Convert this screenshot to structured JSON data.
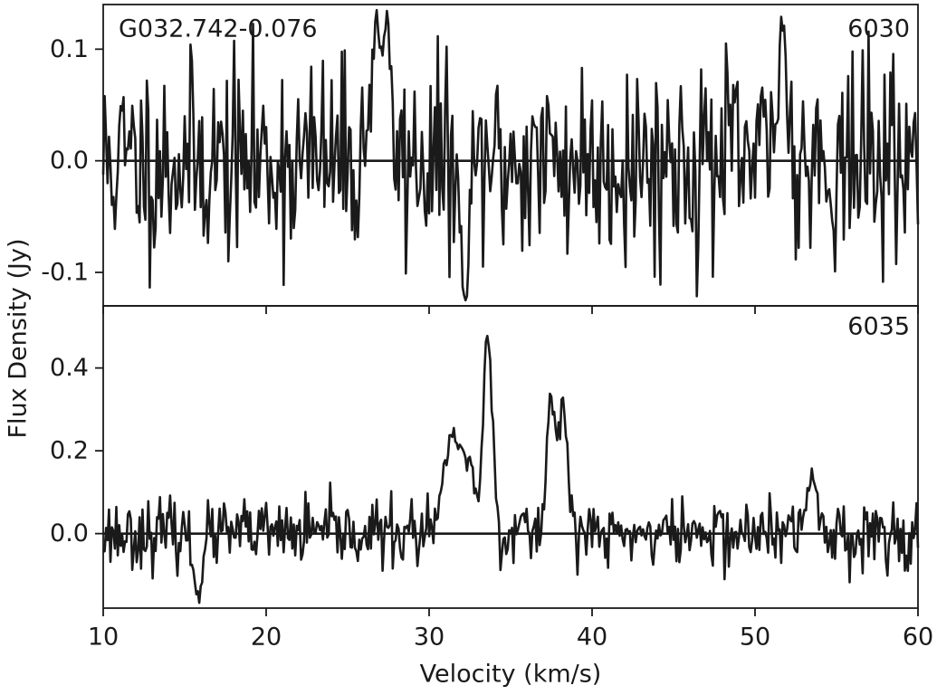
{
  "figure": {
    "source_label": "G032.742-0.076",
    "xlabel": "Velocity (km/s)",
    "ylabel": "Flux Density (Jy)"
  },
  "chart_data": [
    {
      "type": "line",
      "panel": "top",
      "label": "6030",
      "xlim": [
        10,
        60
      ],
      "ylim": [
        -0.13,
        0.14
      ],
      "xticks": [
        10,
        20,
        30,
        40,
        50,
        60
      ],
      "yticks": [
        0.1,
        0.0,
        -0.1
      ],
      "ytick_labels": [
        "0.1",
        "0.0",
        "-0.1"
      ],
      "baseline": 0.0,
      "noise_rms": 0.045,
      "features": [
        {
          "x": 26.7,
          "y": 0.12
        },
        {
          "x": 27.3,
          "y": 0.12
        },
        {
          "x": 32.2,
          "y": -0.12
        },
        {
          "x": 51.7,
          "y": 0.125
        }
      ],
      "grid": false
    },
    {
      "type": "line",
      "panel": "bottom",
      "label": "6035",
      "xlim": [
        10,
        60
      ],
      "ylim": [
        -0.18,
        0.55
      ],
      "xticks": [
        10,
        20,
        30,
        40,
        50,
        60
      ],
      "xtick_labels": [
        "10",
        "20",
        "30",
        "40",
        "50",
        "60"
      ],
      "yticks": [
        0.4,
        0.2,
        0.0
      ],
      "ytick_labels": [
        "0.4",
        "0.2",
        "0.0"
      ],
      "baseline": 0.0,
      "noise_rms": 0.04,
      "features": [
        {
          "x": 31.0,
          "y": 0.15
        },
        {
          "x": 31.5,
          "y": 0.25
        },
        {
          "x": 32.0,
          "y": 0.22
        },
        {
          "x": 32.5,
          "y": 0.18
        },
        {
          "x": 33.6,
          "y": 0.49
        },
        {
          "x": 37.5,
          "y": 0.34
        },
        {
          "x": 38.2,
          "y": 0.32
        },
        {
          "x": 15.8,
          "y": -0.14
        },
        {
          "x": 53.5,
          "y": 0.15
        }
      ],
      "grid": false
    }
  ]
}
